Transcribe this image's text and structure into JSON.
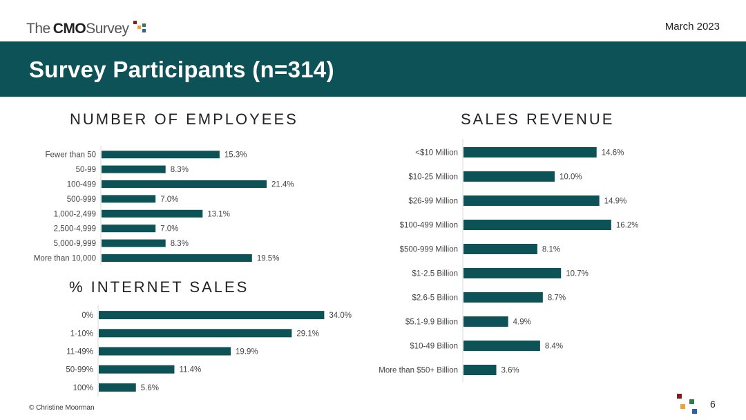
{
  "header": {
    "logo_the": "The",
    "logo_cmo": "CMO",
    "logo_survey": "Survey",
    "date": "March 2023"
  },
  "banner": {
    "title": "Survey Participants (n=314)"
  },
  "colors": {
    "bar": "#0d5257",
    "banner": "#0d5257",
    "logo_squares": [
      "#8b1a1a",
      "#e8a33c",
      "#2e7d4a",
      "#2b5fa8"
    ]
  },
  "footer": {
    "copyright": "© Christine Moorman"
  },
  "page_number": "6",
  "chart_data": [
    {
      "id": "employees",
      "type": "bar",
      "orientation": "horizontal",
      "title": "NUMBER OF EMPLOYEES",
      "categories": [
        "Fewer than 50",
        "50-99",
        "100-499",
        "500-999",
        "1,000-2,499",
        "2,500-4,999",
        "5,000-9,999",
        "More than 10,000"
      ],
      "values": [
        15.3,
        8.3,
        21.4,
        7.0,
        13.1,
        7.0,
        8.3,
        19.5
      ],
      "labels": [
        "15.3%",
        "8.3%",
        "21.4%",
        "7.0%",
        "13.1%",
        "7.0%",
        "8.3%",
        "19.5%"
      ],
      "unit": "%"
    },
    {
      "id": "internet",
      "type": "bar",
      "orientation": "horizontal",
      "title": "% INTERNET SALES",
      "categories": [
        "0%",
        "1-10%",
        "11-49%",
        "50-99%",
        "100%"
      ],
      "values": [
        34.0,
        29.1,
        19.9,
        11.4,
        5.6
      ],
      "labels": [
        "34.0%",
        "29.1%",
        "19.9%",
        "11.4%",
        "5.6%"
      ],
      "unit": "%"
    },
    {
      "id": "revenue",
      "type": "bar",
      "orientation": "horizontal",
      "title": "SALES REVENUE",
      "categories": [
        "<$10 Million",
        "$10-25 Million",
        "$26-99 Million",
        "$100-499 Million",
        "$500-999 Million",
        "$1-2.5 Billion",
        "$2.6-5 Billion",
        "$5.1-9.9 Billion",
        "$10-49 Billion",
        "More than $50+ Billion"
      ],
      "values": [
        14.6,
        10.0,
        14.9,
        16.2,
        8.1,
        10.7,
        8.7,
        4.9,
        8.4,
        3.6
      ],
      "labels": [
        "14.6%",
        "10.0%",
        "14.9%",
        "16.2%",
        "8.1%",
        "10.7%",
        "8.7%",
        "4.9%",
        "8.4%",
        "3.6%"
      ],
      "unit": "%"
    }
  ]
}
